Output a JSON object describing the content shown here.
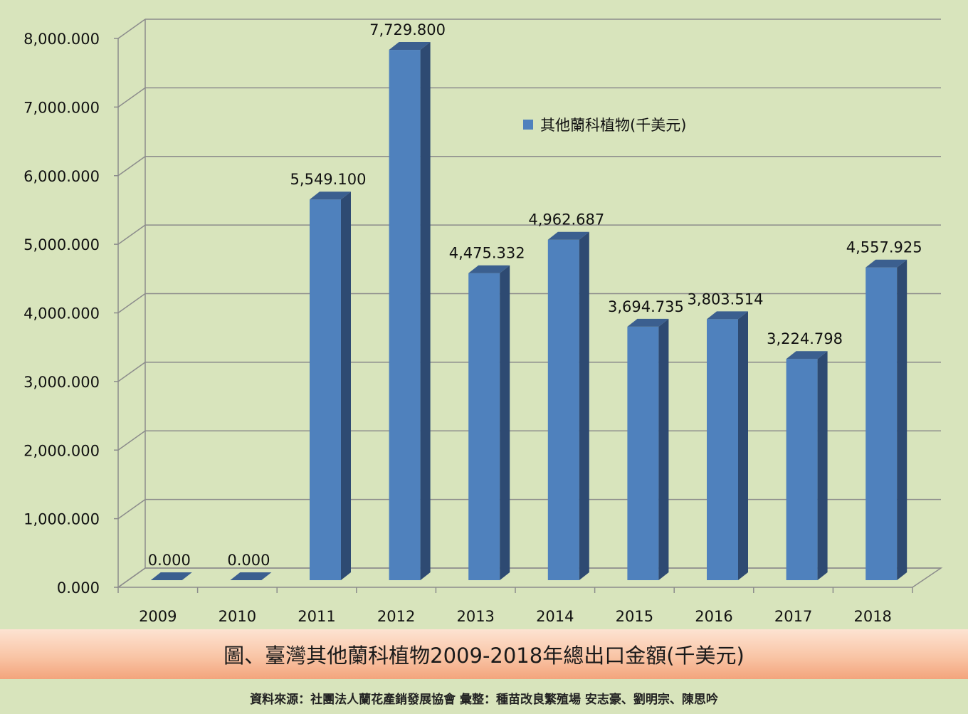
{
  "chart_data": {
    "type": "bar",
    "categories": [
      "2009",
      "2010",
      "2011",
      "2012",
      "2013",
      "2014",
      "2015",
      "2016",
      "2017",
      "2018"
    ],
    "series": [
      {
        "name": "其他蘭科植物(千美元)",
        "values": [
          0,
          0,
          5549.1,
          7729.8,
          4475.332,
          4962.687,
          3694.735,
          3803.514,
          3224.798,
          4557.925
        ]
      }
    ],
    "data_labels": [
      "0.000",
      "0.000",
      "5,549.100",
      "7,729.800",
      "4,475.332",
      "4,962.687",
      "3,694.735",
      "3,803.514",
      "3,224.798",
      "4,557.925"
    ],
    "y_ticks": [
      "0.000",
      "1,000.000",
      "2,000.000",
      "3,000.000",
      "4,000.000",
      "5,000.000",
      "6,000.000",
      "7,000.000",
      "8,000.000"
    ],
    "ylim": [
      0,
      8000
    ],
    "grid": true,
    "legend_position": "top-center",
    "colors": {
      "bar_front": "#4f81bd",
      "bar_side": "#2e4a72",
      "bar_top": "#3b5f8f",
      "background": "#d8e4bc",
      "grid": "#8c8c8c"
    }
  },
  "caption": "圖、臺灣其他蘭科植物2009-2018年總出口金額(千美元)",
  "source": "資料來源：社團法人蘭花產銷發展協會  彙整：種苗改良繁殖場  安志豪、劉明宗、陳思吟"
}
